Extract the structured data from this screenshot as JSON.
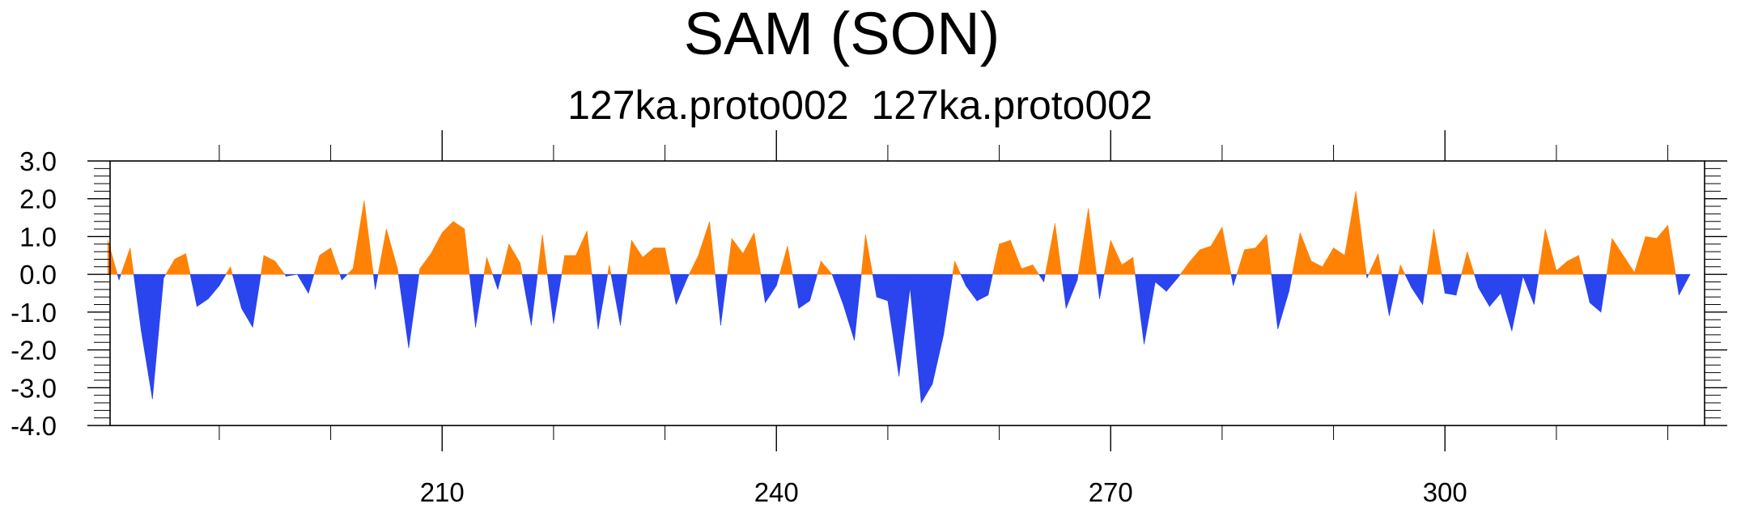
{
  "chart_data": {
    "type": "area",
    "title": "SAM (SON)",
    "subtitle": "127ka.proto002  127ka.proto002",
    "xlabel": "",
    "ylabel": "",
    "xlim": [
      180.2,
      323.3
    ],
    "ylim": [
      -4.0,
      3.0
    ],
    "x_major_ticks": [
      210,
      240,
      270,
      300
    ],
    "x_minor_ticks": [
      190,
      200,
      220,
      230,
      250,
      260,
      280,
      290,
      310,
      320
    ],
    "y_ticks": [
      3.0,
      2.0,
      1.0,
      0.0,
      -1.0,
      -2.0,
      -3.0,
      -4.0
    ],
    "y_tick_labels": [
      "3.0",
      "2.0",
      "1.0",
      "0.0",
      "-1.0",
      "-2.0",
      "-3.0",
      "-4.0"
    ],
    "x_tick_labels": [
      "210",
      "240",
      "270",
      "300"
    ],
    "positive_color": "#ff8205",
    "negative_color": "#2a44ee",
    "grid": false,
    "x": [
      180,
      181,
      182,
      183,
      184,
      185,
      186,
      187,
      188,
      189,
      190,
      191,
      192,
      193,
      194,
      195,
      196,
      197,
      198,
      199,
      200,
      201,
      202,
      203,
      204,
      205,
      206,
      207,
      208,
      209,
      210,
      211,
      212,
      213,
      214,
      215,
      216,
      217,
      218,
      219,
      220,
      221,
      222,
      223,
      224,
      225,
      226,
      227,
      228,
      229,
      230,
      231,
      232,
      233,
      234,
      235,
      236,
      237,
      238,
      239,
      240,
      241,
      242,
      243,
      244,
      245,
      246,
      247,
      248,
      249,
      250,
      251,
      252,
      253,
      254,
      255,
      256,
      257,
      258,
      259,
      260,
      261,
      262,
      263,
      264,
      265,
      266,
      267,
      268,
      269,
      270,
      271,
      272,
      273,
      274,
      275,
      276,
      277,
      278,
      279,
      280,
      281,
      282,
      283,
      284,
      285,
      286,
      287,
      288,
      289,
      290,
      291,
      292,
      293,
      294,
      295,
      296,
      297,
      298,
      299,
      300,
      301,
      302,
      303,
      304,
      305,
      306,
      307,
      308,
      309,
      310,
      311,
      312,
      313,
      314,
      315,
      316,
      317,
      318,
      319,
      320,
      321,
      322,
      323
    ],
    "values": [
      0.9,
      -0.15,
      0.7,
      -1.5,
      -3.3,
      -0.1,
      0.4,
      0.55,
      -0.85,
      -0.65,
      -0.3,
      0.2,
      -0.9,
      -1.4,
      0.5,
      0.35,
      -0.05,
      0.0,
      -0.5,
      0.5,
      0.7,
      -0.15,
      0.15,
      1.95,
      -0.4,
      1.2,
      0.15,
      -1.95,
      0.15,
      0.55,
      1.1,
      1.4,
      1.2,
      -1.4,
      0.45,
      -0.4,
      0.8,
      0.3,
      -1.35,
      1.05,
      -1.3,
      0.5,
      0.5,
      1.15,
      -1.45,
      0.25,
      -1.35,
      0.9,
      0.45,
      0.7,
      0.7,
      -0.8,
      -0.1,
      0.5,
      1.4,
      -1.35,
      0.95,
      0.55,
      1.1,
      -0.75,
      -0.3,
      0.75,
      -0.9,
      -0.7,
      0.35,
      0.0,
      -0.8,
      -1.75,
      1.05,
      -0.6,
      -0.7,
      -2.7,
      -0.35,
      -3.4,
      -2.9,
      -1.6,
      0.35,
      -0.3,
      -0.7,
      -0.55,
      0.8,
      0.9,
      0.15,
      0.25,
      -0.2,
      1.35,
      -0.9,
      -0.15,
      1.75,
      -0.65,
      0.9,
      0.25,
      0.45,
      -1.85,
      -0.2,
      -0.45,
      -0.1,
      0.3,
      0.65,
      0.75,
      1.25,
      -0.3,
      0.65,
      0.7,
      1.05,
      -1.45,
      -0.45,
      1.1,
      0.35,
      0.2,
      0.7,
      0.5,
      2.2,
      -0.1,
      0.55,
      -1.1,
      0.25,
      -0.35,
      -0.8,
      1.2,
      -0.5,
      -0.55,
      0.6,
      -0.35,
      -0.85,
      -0.5,
      -1.5,
      -0.05,
      -0.8,
      1.2,
      0.1,
      0.35,
      0.5,
      -0.75,
      -1.0,
      0.95,
      0.5,
      0.05,
      1.0,
      0.95,
      1.3,
      -0.55,
      0.0,
      0.0
    ]
  }
}
